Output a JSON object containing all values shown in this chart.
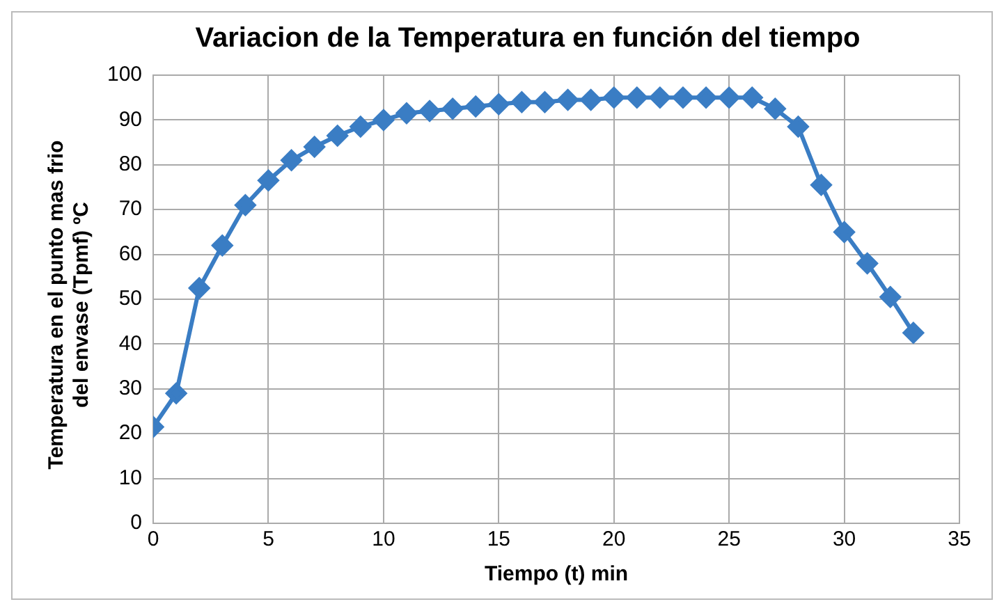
{
  "chart_data": {
    "type": "line",
    "title": "Variacion de la Temperatura en función del tiempo",
    "xlabel": "Tiempo (t) min",
    "ylabel": "Temperatura en el punto mas frio del envase (Tpmf) ºC",
    "x": [
      0,
      1,
      2,
      3,
      4,
      5,
      6,
      7,
      8,
      9,
      10,
      11,
      12,
      13,
      14,
      15,
      16,
      17,
      18,
      19,
      20,
      21,
      22,
      23,
      24,
      25,
      26,
      27,
      28,
      29,
      30,
      31,
      32,
      33
    ],
    "series": [
      {
        "color": "#3a7dc4",
        "values": [
          21.5,
          29,
          52.5,
          62,
          71,
          76.5,
          81,
          84,
          86.5,
          88.5,
          90,
          91.5,
          92,
          92.5,
          93,
          93.5,
          94,
          94,
          94.5,
          94.5,
          95,
          95,
          95,
          95,
          95,
          95,
          95,
          92.5,
          88.5,
          75.5,
          65,
          58,
          50.5,
          42.5
        ]
      }
    ],
    "xlim": [
      0,
      35
    ],
    "xticks": [
      0,
      5,
      10,
      15,
      20,
      25,
      30,
      35
    ],
    "ylim": [
      0,
      100
    ],
    "yticks": [
      0,
      10,
      20,
      30,
      40,
      50,
      60,
      70,
      80,
      90,
      100
    ],
    "grid": true,
    "marker": "diamond",
    "line_style": "solid",
    "legend": false
  }
}
